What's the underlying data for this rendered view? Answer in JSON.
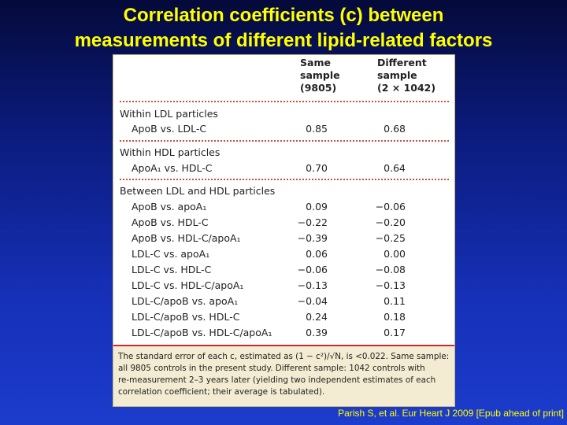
{
  "title": {
    "line1": "Correlation coefficients (c) between",
    "line2": "measurements of different lipid-related factors"
  },
  "table": {
    "columns": [
      {
        "line1": "Same",
        "line2": "sample",
        "line3": "(9805)"
      },
      {
        "line1": "Different",
        "line2": "sample",
        "line3": "(2 × 1042)"
      }
    ],
    "sections": [
      {
        "heading": "Within LDL particles",
        "rows": [
          {
            "label": "ApoB vs. LDL-C",
            "same": "0.85",
            "different": "0.68"
          }
        ]
      },
      {
        "heading": "Within HDL particles",
        "rows": [
          {
            "label": "ApoA₁ vs. HDL-C",
            "same": "0.70",
            "different": "0.64"
          }
        ]
      },
      {
        "heading": "Between LDL and HDL particles",
        "rows": [
          {
            "label": "ApoB vs. apoA₁",
            "same": "0.09",
            "different": "−0.06"
          },
          {
            "label": "ApoB vs. HDL-C",
            "same": "−0.22",
            "different": "−0.20"
          },
          {
            "label": "ApoB vs. HDL-C/apoA₁",
            "same": "−0.39",
            "different": "−0.25"
          },
          {
            "label": "LDL-C vs. apoA₁",
            "same": "0.06",
            "different": "0.00"
          },
          {
            "label": "LDL-C vs. HDL-C",
            "same": "−0.06",
            "different": "−0.08"
          },
          {
            "label": "LDL-C vs. HDL-C/apoA₁",
            "same": "−0.13",
            "different": "−0.13"
          },
          {
            "label": "LDL-C/apoB vs. apoA₁",
            "same": "−0.04",
            "different": "0.11"
          },
          {
            "label": "LDL-C/apoB vs. HDL-C",
            "same": "0.24",
            "different": "0.18"
          },
          {
            "label": "LDL-C/apoB vs. HDL-C/apoA₁",
            "same": "0.39",
            "different": "0.17"
          }
        ]
      }
    ]
  },
  "footnote": {
    "line1": "The standard error of each c, estimated as (1 − c²)/√N, is <0.022. Same sample:",
    "line2": "all 9805 controls in the present study. Different sample: 1042 controls with",
    "line3": "re-measurement 2–3 years later (yielding two independent estimates of each",
    "line4": "correlation coefficient; their average is tabulated)."
  },
  "citation": "Parish S, et al. Eur Heart J 2009 [Epub ahead of print]",
  "colors": {
    "title": "#ffff00",
    "background_top": "#050a3a",
    "background_bottom": "#1c3ccc",
    "rule": "#c82a3a",
    "note_bg": "#f3ecd2"
  }
}
